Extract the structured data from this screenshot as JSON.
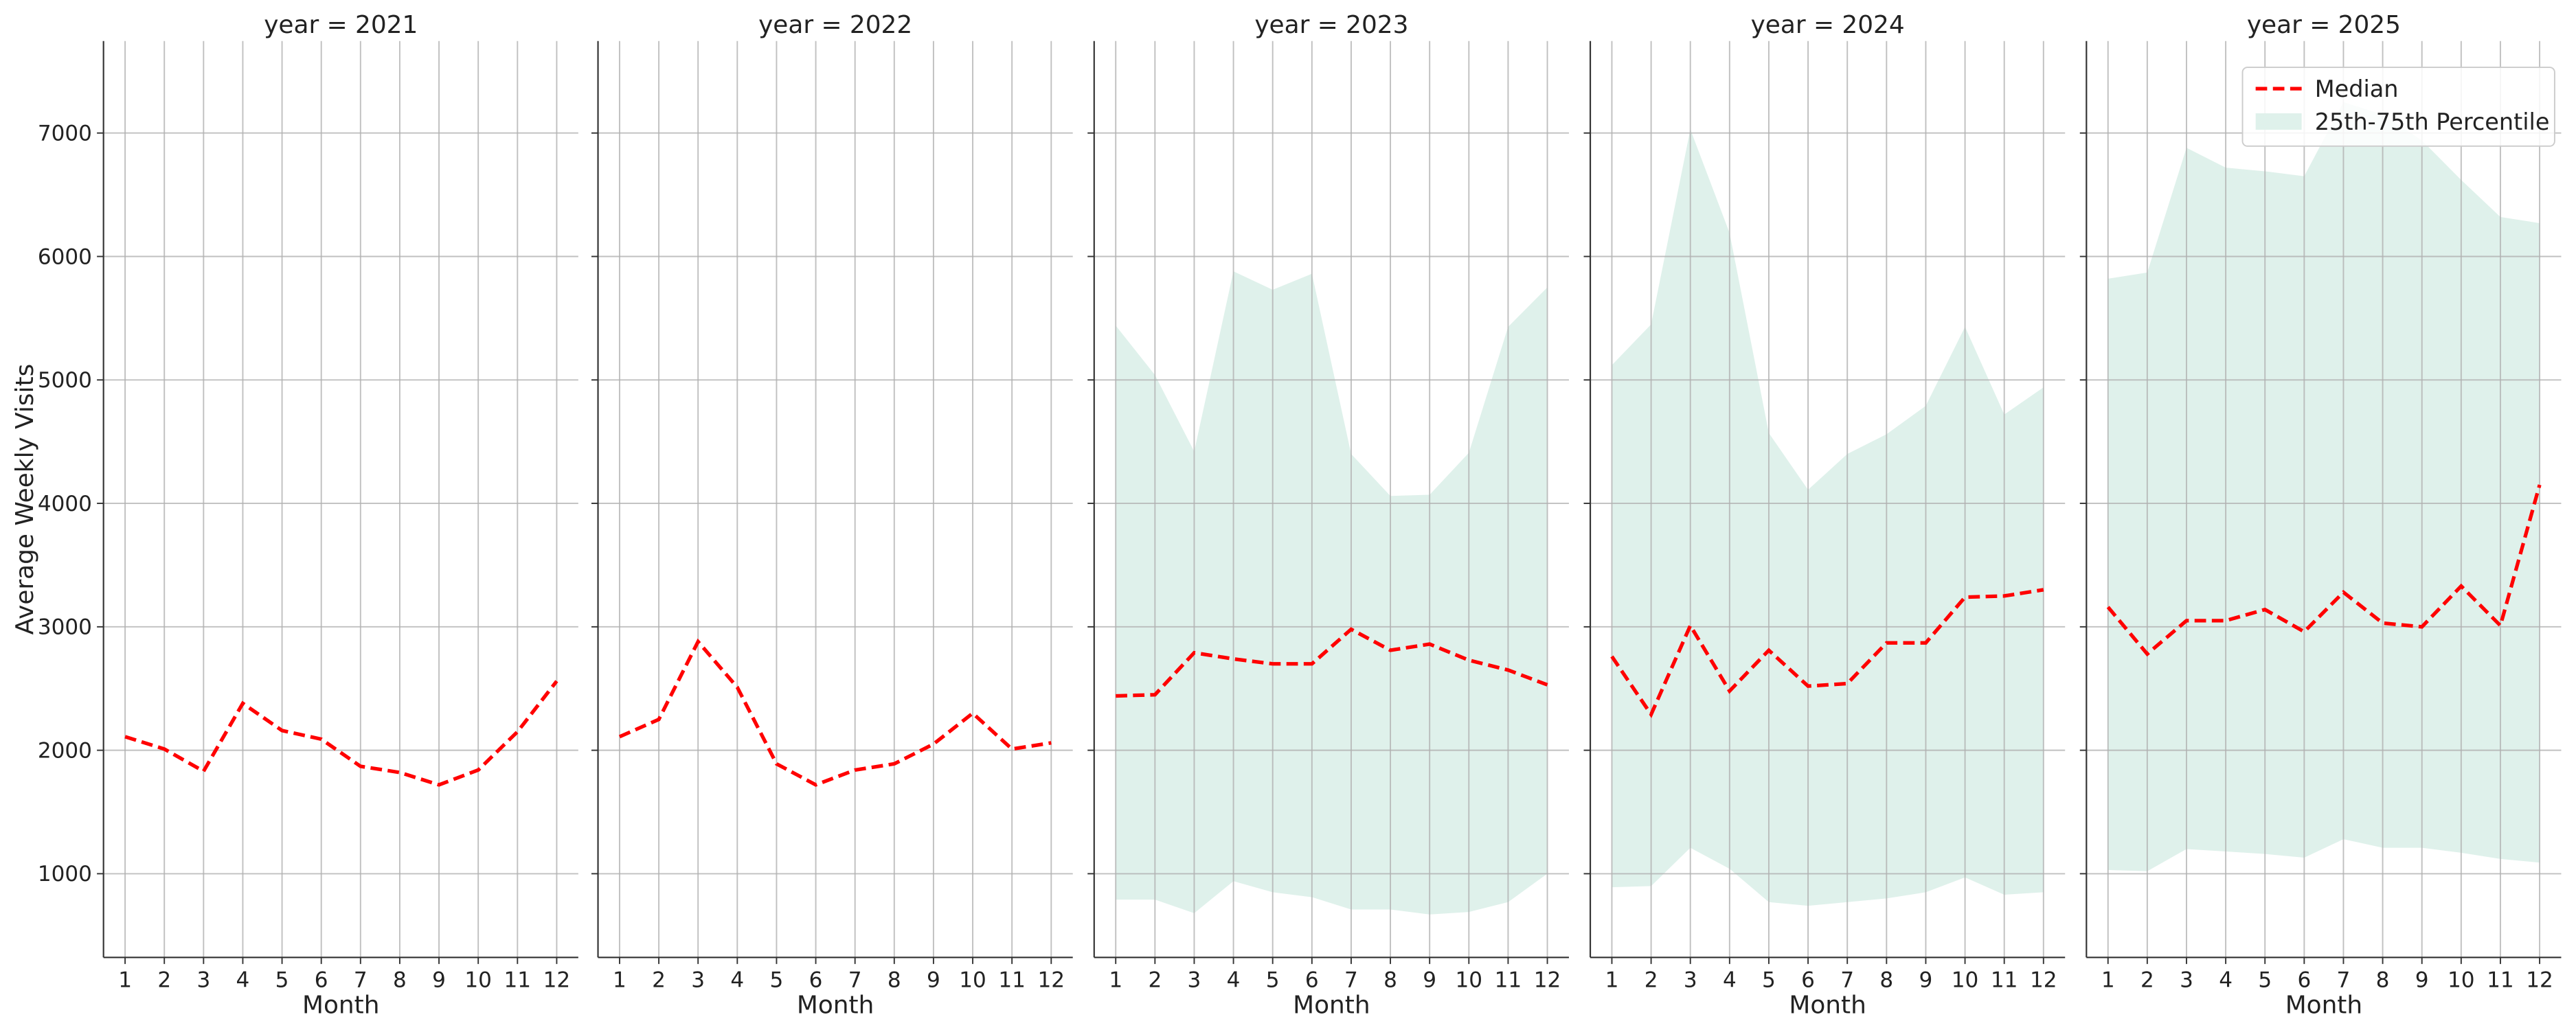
{
  "chart_data": [
    {
      "type": "line",
      "title": "year = 2021",
      "xlabel": "Month",
      "ylabel": "Average Weekly Visits",
      "x": [
        1,
        2,
        3,
        4,
        5,
        6,
        7,
        8,
        9,
        10,
        11,
        12
      ],
      "xlim": [
        0.45,
        12.55
      ],
      "xticks": [
        1,
        2,
        3,
        4,
        5,
        6,
        7,
        8,
        9,
        10,
        11,
        12
      ],
      "ylim": [
        322,
        7745
      ],
      "yticks": [
        1000,
        2000,
        3000,
        4000,
        5000,
        6000,
        7000
      ],
      "grid": true,
      "series": [
        {
          "color": "#ff0000",
          "values": [
            2110,
            2010,
            1830,
            2380,
            2160,
            2090,
            1870,
            1820,
            1720,
            1840,
            2150,
            2560
          ]
        }
      ]
    },
    {
      "type": "line",
      "title": "year = 2022",
      "xlabel": "Month",
      "x": [
        1,
        2,
        3,
        4,
        5,
        6,
        7,
        8,
        9,
        10,
        11,
        12
      ],
      "xlim": [
        0.45,
        12.55
      ],
      "xticks": [
        1,
        2,
        3,
        4,
        5,
        6,
        7,
        8,
        9,
        10,
        11,
        12
      ],
      "ylim": [
        322,
        7745
      ],
      "yticks": [
        1000,
        2000,
        3000,
        4000,
        5000,
        6000,
        7000
      ],
      "grid": true,
      "series": [
        {
          "color": "#ff0000",
          "values": [
            2110,
            2250,
            2880,
            2510,
            1890,
            1720,
            1840,
            1890,
            2050,
            2300,
            2010,
            2060
          ]
        }
      ]
    },
    {
      "type": "line",
      "title": "year = 2023",
      "xlabel": "Month",
      "x": [
        1,
        2,
        3,
        4,
        5,
        6,
        7,
        8,
        9,
        10,
        11,
        12
      ],
      "xlim": [
        0.45,
        12.55
      ],
      "xticks": [
        1,
        2,
        3,
        4,
        5,
        6,
        7,
        8,
        9,
        10,
        11,
        12
      ],
      "ylim": [
        322,
        7745
      ],
      "yticks": [
        1000,
        2000,
        3000,
        4000,
        5000,
        6000,
        7000
      ],
      "grid": true,
      "series": [
        {
          "color": "#ff0000",
          "values": [
            2440,
            2450,
            2790,
            2740,
            2700,
            2700,
            2980,
            2810,
            2860,
            2730,
            2650,
            2530
          ]
        }
      ],
      "band": {
        "color": "#dff1eb",
        "lower": [
          790,
          790,
          680,
          940,
          850,
          810,
          710,
          710,
          670,
          690,
          770,
          1000
        ],
        "upper": [
          5440,
          5040,
          4420,
          5880,
          5730,
          5860,
          4400,
          4060,
          4070,
          4410,
          5430,
          5750
        ]
      }
    },
    {
      "type": "line",
      "title": "year = 2024",
      "xlabel": "Month",
      "x": [
        1,
        2,
        3,
        4,
        5,
        6,
        7,
        8,
        9,
        10,
        11,
        12
      ],
      "xlim": [
        0.45,
        12.55
      ],
      "xticks": [
        1,
        2,
        3,
        4,
        5,
        6,
        7,
        8,
        9,
        10,
        11,
        12
      ],
      "ylim": [
        322,
        7745
      ],
      "yticks": [
        1000,
        2000,
        3000,
        4000,
        5000,
        6000,
        7000
      ],
      "grid": true,
      "series": [
        {
          "color": "#ff0000",
          "values": [
            2760,
            2290,
            3010,
            2480,
            2810,
            2520,
            2540,
            2870,
            2870,
            3240,
            3250,
            3300
          ]
        }
      ],
      "band": {
        "color": "#dff1eb",
        "lower": [
          890,
          900,
          1210,
          1040,
          770,
          740,
          770,
          800,
          850,
          970,
          830,
          850
        ],
        "upper": [
          5120,
          5450,
          7030,
          6190,
          4570,
          4110,
          4400,
          4560,
          4790,
          5430,
          4720,
          4940
        ]
      }
    },
    {
      "type": "line",
      "title": "year = 2025",
      "xlabel": "Month",
      "x": [
        1,
        2,
        3,
        4,
        5,
        6,
        7,
        8,
        9,
        10,
        11,
        12
      ],
      "xlim": [
        0.45,
        12.55
      ],
      "xticks": [
        1,
        2,
        3,
        4,
        5,
        6,
        7,
        8,
        9,
        10,
        11,
        12
      ],
      "ylim": [
        322,
        7745
      ],
      "yticks": [
        1000,
        2000,
        3000,
        4000,
        5000,
        6000,
        7000
      ],
      "grid": true,
      "legend": "upper right",
      "series": [
        {
          "name": "Median",
          "color": "#ff0000",
          "values": [
            3160,
            2780,
            3050,
            3050,
            3140,
            2960,
            3280,
            3030,
            3000,
            3330,
            3010,
            4150
          ]
        }
      ],
      "band": {
        "name": "25th-75th Percentile",
        "color": "#dff1eb",
        "lower": [
          1030,
          1020,
          1200,
          1180,
          1160,
          1130,
          1280,
          1210,
          1210,
          1170,
          1120,
          1090
        ],
        "upper": [
          5820,
          5870,
          6880,
          6720,
          6690,
          6650,
          7250,
          7150,
          6940,
          6620,
          6320,
          6270
        ]
      }
    }
  ]
}
